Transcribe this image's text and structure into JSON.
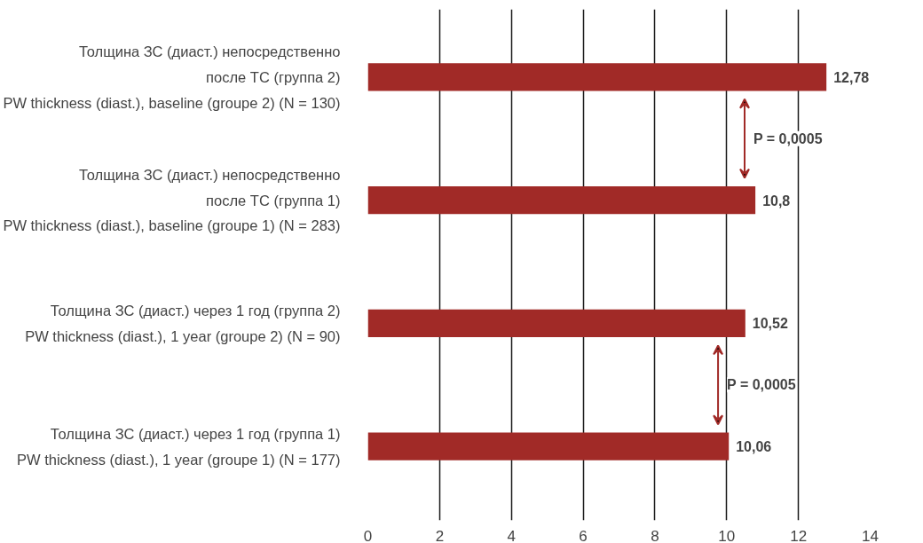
{
  "chart_data": {
    "type": "bar",
    "orientation": "horizontal",
    "categories": [
      "Толщина ЗС (диаст.) непосредственно\nпосле ТС (группа 2)\nPW thickness (diast.), baseline (groupe 2) (N = 130)",
      "Толщина ЗС (диаст.) непосредственно\nпосле ТС (группа 1)\nPW thickness (diast.), baseline (groupe 1) (N = 283)",
      "Толщина ЗС (диаст.) через 1 год (группа 2)\nPW thickness (diast.), 1 year (groupe 2) (N = 90)",
      "Толщина ЗС (диаст.) через 1 год (группа 1)\nPW thickness (diast.), 1 year (groupe 1) (N = 177)"
    ],
    "values": [
      12.78,
      10.8,
      10.52,
      10.06
    ],
    "value_labels": [
      "12,78",
      "10,8",
      "10,52",
      "10,06"
    ],
    "color": "#a12a27",
    "xlim": [
      0,
      14
    ],
    "xticks": [
      0,
      2,
      4,
      6,
      8,
      10,
      12,
      14
    ],
    "grid": "x",
    "annotations": [
      "P = 0,0005",
      "P = 0,0005"
    ]
  }
}
